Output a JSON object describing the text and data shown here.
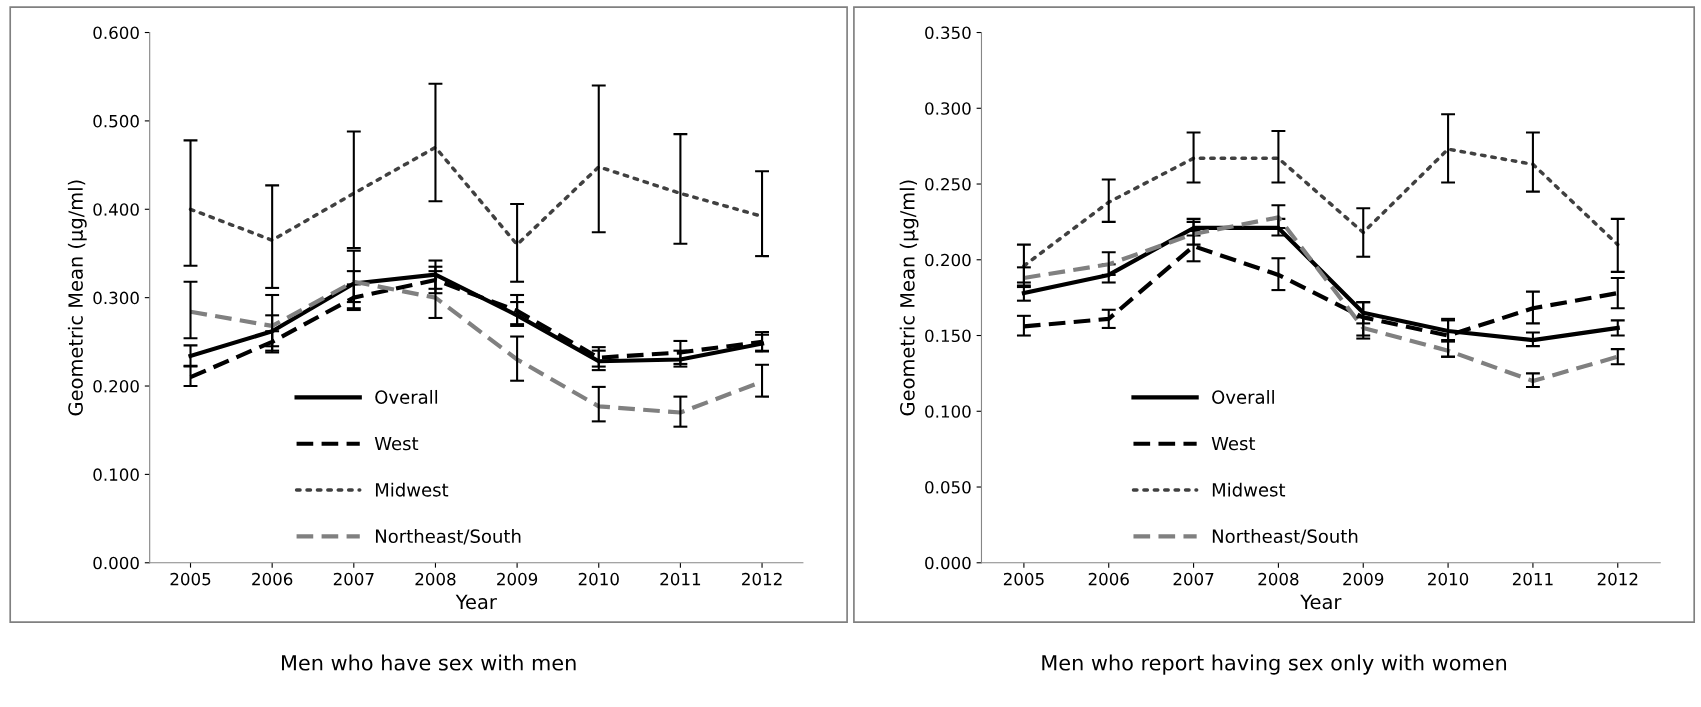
{
  "chart_data": [
    {
      "type": "line",
      "xlabel": "Year",
      "ylabel": "Geometric Mean (µg/ml)",
      "categories": [
        "2005",
        "2006",
        "2007",
        "2008",
        "2009",
        "2010",
        "2011",
        "2012"
      ],
      "ylim": [
        0,
        0.6
      ],
      "yticks": [
        {
          "value": 0,
          "label": "0.000"
        },
        {
          "value": 0.1,
          "label": "0.100"
        },
        {
          "value": 0.2,
          "label": "0.200"
        },
        {
          "value": 0.3,
          "label": "0.300"
        },
        {
          "value": 0.4,
          "label": "0.400"
        },
        {
          "value": 0.5,
          "label": "0.500"
        },
        {
          "value": 0.6,
          "label": "0.600"
        }
      ],
      "legend": "bottom left",
      "grid": false,
      "marker": "none",
      "annotations": [
        "Men who have sex with men"
      ],
      "series": [
        {
          "name": "Overall",
          "color": "#000000",
          "line_style": "solid",
          "values": [
            0.234,
            0.262,
            0.316,
            0.326,
            0.28,
            0.228,
            0.23,
            0.248
          ],
          "errors": [
            [
              0.222,
              0.246
            ],
            [
              0.245,
              0.28
            ],
            [
              0.295,
              0.33
            ],
            [
              0.31,
              0.342
            ],
            [
              0.268,
              0.295
            ],
            [
              0.218,
              0.24
            ],
            [
              0.222,
              0.24
            ],
            [
              0.239,
              0.258
            ]
          ]
        },
        {
          "name": "West",
          "color": "#000000",
          "line_style": "dashed",
          "values": [
            0.21,
            0.25,
            0.3,
            0.32,
            0.285,
            0.232,
            0.238,
            0.25
          ],
          "errors": [
            [
              0.2,
              0.223
            ],
            [
              0.238,
              0.262
            ],
            [
              0.288,
              0.315
            ],
            [
              0.305,
              0.335
            ],
            [
              0.27,
              0.303
            ],
            [
              0.222,
              0.244
            ],
            [
              0.225,
              0.251
            ],
            [
              0.24,
              0.261
            ]
          ]
        },
        {
          "name": "Midwest",
          "color": "#404040",
          "line_style": "dotted",
          "values": [
            0.4,
            0.365,
            0.418,
            0.47,
            0.36,
            0.448,
            0.418,
            0.392
          ],
          "errors": [
            [
              0.336,
              0.478
            ],
            [
              0.311,
              0.427
            ],
            [
              0.356,
              0.488
            ],
            [
              0.409,
              0.542
            ],
            [
              0.318,
              0.406
            ],
            [
              0.374,
              0.54
            ],
            [
              0.361,
              0.485
            ],
            [
              0.347,
              0.443
            ]
          ]
        },
        {
          "name": "Northeast/South",
          "color": "#808080",
          "line_style": "dashed",
          "values": [
            0.284,
            0.268,
            0.318,
            0.3,
            0.23,
            0.177,
            0.17,
            0.205
          ],
          "errors": [
            [
              0.254,
              0.318
            ],
            [
              0.24,
              0.303
            ],
            [
              0.286,
              0.353
            ],
            [
              0.277,
              0.33
            ],
            [
              0.206,
              0.256
            ],
            [
              0.16,
              0.199
            ],
            [
              0.154,
              0.188
            ],
            [
              0.188,
              0.224
            ]
          ]
        }
      ]
    },
    {
      "type": "line",
      "xlabel": "Year",
      "ylabel": "Geometric Mean (µg/ml)",
      "categories": [
        "2005",
        "2006",
        "2007",
        "2008",
        "2009",
        "2010",
        "2011",
        "2012"
      ],
      "ylim": [
        0,
        0.35
      ],
      "yticks": [
        {
          "value": 0,
          "label": "0.000"
        },
        {
          "value": 0.05,
          "label": "0.050"
        },
        {
          "value": 0.1,
          "label": "0.100"
        },
        {
          "value": 0.15,
          "label": "0.150"
        },
        {
          "value": 0.2,
          "label": "0.200"
        },
        {
          "value": 0.25,
          "label": "0.250"
        },
        {
          "value": 0.3,
          "label": "0.300"
        },
        {
          "value": 0.35,
          "label": "0.350"
        }
      ],
      "legend": "bottom left",
      "grid": false,
      "marker": "none",
      "annotations": [
        "Men who report having sex only with women"
      ],
      "series": [
        {
          "name": "Overall",
          "color": "#000000",
          "line_style": "solid",
          "values": [
            0.178,
            0.19,
            0.221,
            0.221,
            0.165,
            0.153,
            0.147,
            0.155
          ],
          "errors": [
            [
              0.173,
              0.183
            ],
            [
              0.185,
              0.197
            ],
            [
              0.216,
              0.227
            ],
            [
              0.216,
              0.227
            ],
            [
              0.158,
              0.172
            ],
            [
              0.147,
              0.16
            ],
            [
              0.143,
              0.152
            ],
            [
              0.15,
              0.16
            ]
          ]
        },
        {
          "name": "West",
          "color": "#000000",
          "line_style": "dashed",
          "values": [
            0.156,
            0.161,
            0.209,
            0.19,
            0.162,
            0.15,
            0.168,
            0.178
          ],
          "errors": [
            [
              0.15,
              0.163
            ],
            [
              0.155,
              0.167
            ],
            [
              0.199,
              0.219
            ],
            [
              0.18,
              0.201
            ],
            [
              0.15,
              0.172
            ],
            [
              0.136,
              0.161
            ],
            [
              0.158,
              0.179
            ],
            [
              0.168,
              0.188
            ]
          ]
        },
        {
          "name": "Midwest",
          "color": "#404040",
          "line_style": "dotted",
          "values": [
            0.196,
            0.238,
            0.267,
            0.267,
            0.218,
            0.273,
            0.263,
            0.21
          ],
          "errors": [
            [
              0.185,
              0.21
            ],
            [
              0.225,
              0.253
            ],
            [
              0.251,
              0.284
            ],
            [
              0.251,
              0.285
            ],
            [
              0.202,
              0.234
            ],
            [
              0.251,
              0.296
            ],
            [
              0.245,
              0.284
            ],
            [
              0.192,
              0.227
            ]
          ]
        },
        {
          "name": "Northeast/South",
          "color": "#808080",
          "line_style": "dashed",
          "values": [
            0.188,
            0.197,
            0.217,
            0.228,
            0.155,
            0.14,
            0.12,
            0.136
          ],
          "errors": [
            [
              0.182,
              0.195
            ],
            [
              0.19,
              0.205
            ],
            [
              0.21,
              0.225
            ],
            [
              0.221,
              0.236
            ],
            [
              0.148,
              0.162
            ],
            [
              0.136,
              0.146
            ],
            [
              0.116,
              0.125
            ],
            [
              0.131,
              0.141
            ]
          ]
        }
      ]
    }
  ]
}
